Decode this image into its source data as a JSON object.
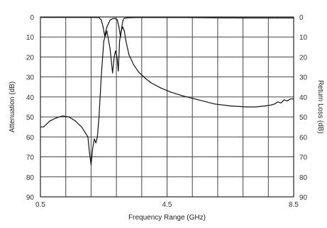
{
  "chart_data": {
    "type": "line",
    "xlabel": "Frequency Range (GHz)",
    "ylabel_left": "Attenuation (dB)",
    "ylabel_right": "Return Loss (dB)",
    "xlim": [
      0.5,
      8.5
    ],
    "ylim": [
      0,
      90
    ],
    "y_inverted": true,
    "x_ticks": [
      "0.5",
      "4.5",
      "8.5"
    ],
    "x_tick_values": [
      0.5,
      4.5,
      8.5
    ],
    "y_ticks": [
      "0",
      "10",
      "20",
      "30",
      "40",
      "50",
      "60",
      "70",
      "80",
      "90"
    ],
    "y_tick_values": [
      0,
      10,
      20,
      30,
      40,
      50,
      60,
      70,
      80,
      90
    ],
    "grid": true,
    "x_grid_divisions": 10,
    "series": [
      {
        "x": [
          0.5,
          0.6,
          0.8,
          1.0,
          1.2,
          1.4,
          1.6,
          1.8,
          2.0,
          2.05,
          2.1,
          2.15,
          2.2,
          2.25,
          2.3,
          2.35,
          2.42,
          2.5,
          2.6,
          2.7,
          2.78,
          2.83,
          2.87,
          2.92,
          2.96,
          3.0,
          3.05,
          3.1,
          3.15,
          3.2,
          3.3,
          3.45,
          3.6,
          3.8,
          4.0,
          4.3,
          4.6,
          5.0,
          5.5,
          6.0,
          6.5,
          7.0,
          7.3,
          7.6,
          7.8,
          7.9,
          8.0,
          8.1,
          8.2,
          8.3,
          8.4,
          8.5
        ],
        "y": [
          55,
          55,
          52,
          50.5,
          49.5,
          50,
          52,
          55,
          60,
          68,
          74,
          66,
          61,
          63,
          60,
          50,
          30,
          12,
          7,
          16,
          28,
          20,
          17,
          20,
          27,
          12,
          7,
          5,
          7,
          12,
          19,
          24,
          27.5,
          30.5,
          33,
          35.5,
          37.5,
          39.5,
          41.5,
          43.5,
          44.5,
          45,
          45,
          44.5,
          44,
          43.5,
          42.5,
          43,
          41.5,
          42,
          41,
          41
        ]
      },
      {
        "x": [
          0.5,
          1.0,
          1.5,
          2.0,
          2.35,
          2.42,
          2.48,
          2.53,
          2.6,
          2.7,
          2.78,
          2.86,
          2.93,
          2.98,
          3.03,
          3.07,
          3.11,
          3.15,
          3.25,
          3.5,
          4.0,
          4.5,
          5.0,
          6.0,
          7.0,
          8.0,
          8.5
        ],
        "y": [
          0.2,
          0.2,
          0.2,
          0.2,
          0.3,
          1.5,
          5,
          9.5,
          5,
          1.5,
          0.8,
          0.7,
          1.5,
          5,
          10,
          5,
          1.5,
          0.6,
          0.4,
          0.3,
          0.3,
          0.3,
          0.3,
          0.4,
          0.5,
          0.5,
          0.5
        ]
      }
    ]
  }
}
